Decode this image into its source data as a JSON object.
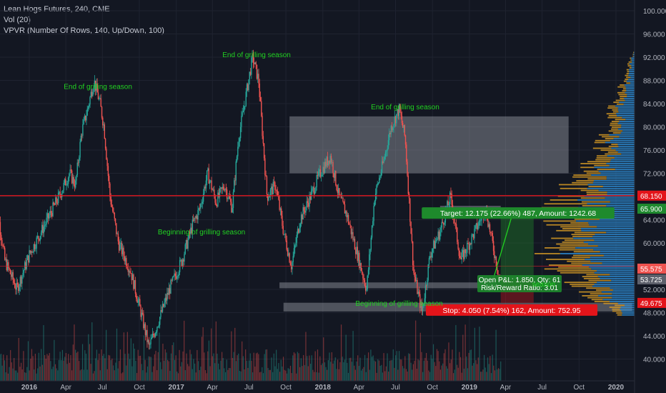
{
  "header": {
    "symbol_line": "Lean Hogs Futures, 240, CME",
    "vol_line": "Vol (20)",
    "vpvr_line": "VPVR (Number Of Rows, 140, Up/Down, 100)"
  },
  "colors": {
    "background": "#131722",
    "grid": "#1f2330",
    "up": "#26a69a",
    "down": "#ef5350",
    "annotation": "#21d121",
    "resistance": "#e0161e",
    "zone": "#b2b5be",
    "vp_up": "#2f8fd8",
    "vp_down": "#d69a25",
    "target": "#1f7a2a",
    "stop": "#e3141a"
  },
  "chart_data": {
    "type": "candlestick",
    "title": "Lean Hogs Futures, 240, CME",
    "y_axis": {
      "range": [
        36,
        102
      ],
      "ticks": [
        "100.000",
        "96.000",
        "92.000",
        "88.000",
        "84.000",
        "80.000",
        "76.000",
        "72.000",
        "68.000",
        "64.000",
        "60.000",
        "56.000",
        "52.000",
        "48.000",
        "44.000",
        "40.000"
      ]
    },
    "x_axis": {
      "range": [
        "2015-10",
        "2020-04"
      ],
      "ticks": [
        {
          "label": "2016",
          "date": "2016-01"
        },
        {
          "label": "Apr",
          "date": "2016-04"
        },
        {
          "label": "Jul",
          "date": "2016-07"
        },
        {
          "label": "Oct",
          "date": "2016-10"
        },
        {
          "label": "2017",
          "date": "2017-01"
        },
        {
          "label": "Apr",
          "date": "2017-04"
        },
        {
          "label": "Jul",
          "date": "2017-07"
        },
        {
          "label": "Oct",
          "date": "2017-10"
        },
        {
          "label": "2018",
          "date": "2018-01"
        },
        {
          "label": "Apr",
          "date": "2018-04"
        },
        {
          "label": "Jul",
          "date": "2018-07"
        },
        {
          "label": "Oct",
          "date": "2018-10"
        },
        {
          "label": "2019",
          "date": "2019-01"
        },
        {
          "label": "Apr",
          "date": "2019-04"
        },
        {
          "label": "Jul",
          "date": "2019-07"
        },
        {
          "label": "Oct",
          "date": "2019-10"
        },
        {
          "label": "2020",
          "date": "2020-01"
        }
      ]
    },
    "price_path": [
      [
        "2015-10-05",
        70
      ],
      [
        "2015-11-01",
        57
      ],
      [
        "2015-12-01",
        52
      ],
      [
        "2016-01-01",
        58
      ],
      [
        "2016-02-15",
        64
      ],
      [
        "2016-03-15",
        68
      ],
      [
        "2016-04-10",
        72
      ],
      [
        "2016-04-25",
        70
      ],
      [
        "2016-05-10",
        79
      ],
      [
        "2016-05-25",
        83
      ],
      [
        "2016-06-10",
        88
      ],
      [
        "2016-06-25",
        84
      ],
      [
        "2016-07-05",
        80
      ],
      [
        "2016-07-20",
        68
      ],
      [
        "2016-08-10",
        60
      ],
      [
        "2016-09-10",
        55
      ],
      [
        "2016-10-05",
        48
      ],
      [
        "2016-10-25",
        42
      ],
      [
        "2016-11-15",
        46
      ],
      [
        "2016-12-15",
        52
      ],
      [
        "2017-01-15",
        57
      ],
      [
        "2017-02-10",
        63
      ],
      [
        "2017-03-01",
        66
      ],
      [
        "2017-03-20",
        72
      ],
      [
        "2017-04-10",
        67
      ],
      [
        "2017-05-01",
        70
      ],
      [
        "2017-05-20",
        66
      ],
      [
        "2017-06-05",
        78
      ],
      [
        "2017-06-25",
        86
      ],
      [
        "2017-07-10",
        92
      ],
      [
        "2017-07-25",
        88
      ],
      [
        "2017-08-15",
        68
      ],
      [
        "2017-09-05",
        70
      ],
      [
        "2017-09-25",
        62
      ],
      [
        "2017-10-15",
        56
      ],
      [
        "2017-11-05",
        64
      ],
      [
        "2017-12-01",
        68
      ],
      [
        "2017-12-25",
        72
      ],
      [
        "2018-01-20",
        75
      ],
      [
        "2018-02-10",
        68
      ],
      [
        "2018-03-01",
        65
      ],
      [
        "2018-04-01",
        57
      ],
      [
        "2018-04-20",
        52
      ],
      [
        "2018-05-10",
        68
      ],
      [
        "2018-06-01",
        74
      ],
      [
        "2018-06-20",
        80
      ],
      [
        "2018-07-10",
        83
      ],
      [
        "2018-07-25",
        78
      ],
      [
        "2018-08-15",
        55
      ],
      [
        "2018-09-05",
        48
      ],
      [
        "2018-09-25",
        58
      ],
      [
        "2018-10-20",
        62
      ],
      [
        "2018-11-15",
        68
      ],
      [
        "2018-12-10",
        57
      ],
      [
        "2019-01-15",
        62
      ],
      [
        "2019-02-10",
        66
      ],
      [
        "2019-03-05",
        58
      ],
      [
        "2019-03-20",
        53
      ]
    ],
    "volume_bars": 430,
    "volume_profile": {
      "rows": 140,
      "shape": [
        [
          48,
          0.2
        ],
        [
          51,
          0.5
        ],
        [
          54,
          0.75
        ],
        [
          57,
          0.9
        ],
        [
          60,
          1.0
        ],
        [
          63,
          0.95
        ],
        [
          66,
          0.85
        ],
        [
          68,
          0.8
        ],
        [
          72,
          0.6
        ],
        [
          76,
          0.4
        ],
        [
          80,
          0.3
        ],
        [
          84,
          0.25
        ],
        [
          88,
          0.12
        ],
        [
          92,
          0.05
        ]
      ]
    },
    "horizontal_lines": [
      {
        "price": 68.15,
        "label": "68.150"
      },
      {
        "price": 56.0,
        "label": ""
      }
    ],
    "zones": [
      {
        "from": "2017-10-10",
        "to": "2019-09-05",
        "top": 81.8,
        "bottom": 72.0
      },
      {
        "from": "2018-10-20",
        "to": "2019-03-20",
        "top": 66.4,
        "bottom": 65.6
      },
      {
        "from": "2017-09-15",
        "to": "2019-03-10",
        "top": 53.2,
        "bottom": 52.2
      },
      {
        "from": "2017-09-25",
        "to": "2020-02-10",
        "top": 49.7,
        "bottom": 48.2
      }
    ],
    "annotations": [
      {
        "text": "End of grilling season",
        "date": "2016-06-20",
        "price": 86.5
      },
      {
        "text": "End of grilling season",
        "date": "2017-07-20",
        "price": 92.0
      },
      {
        "text": "End of grilling season",
        "date": "2018-07-25",
        "price": 83.0
      },
      {
        "text": "Beginning of grilling season",
        "date": "2017-03-05",
        "price": 61.5
      },
      {
        "text": "Beginning of grilling season",
        "date": "2018-07-10",
        "price": 49.2
      },
      {
        "text": "season",
        "date": "2019-07-05",
        "price": 52.5
      }
    ],
    "position": {
      "entry": 53.725,
      "target": 65.9,
      "stop": 49.675,
      "from": "2019-03-20",
      "to": "2019-06-10",
      "target_text": "Target: 12.175 (22.66%) 487, Amount: 1242.68",
      "stop_text": "Stop: 4.050 (7.54%) 162, Amount: 752.95",
      "pnl_text": "Open P&L: 1.850, Qty: 61",
      "rr_text": "Risk/Reward Ratio: 3.01"
    },
    "price_labels": [
      {
        "price": 68.15,
        "text": "68.150",
        "color": "#e3141a"
      },
      {
        "price": 65.9,
        "text": "65.900",
        "color": "#1f8a2f"
      },
      {
        "price": 55.575,
        "text": "55.575",
        "color": "#ef5350"
      },
      {
        "price": 53.725,
        "text": "53.725",
        "color": "#5d606b"
      },
      {
        "price": 49.675,
        "text": "49.675",
        "color": "#e3141a"
      }
    ]
  }
}
